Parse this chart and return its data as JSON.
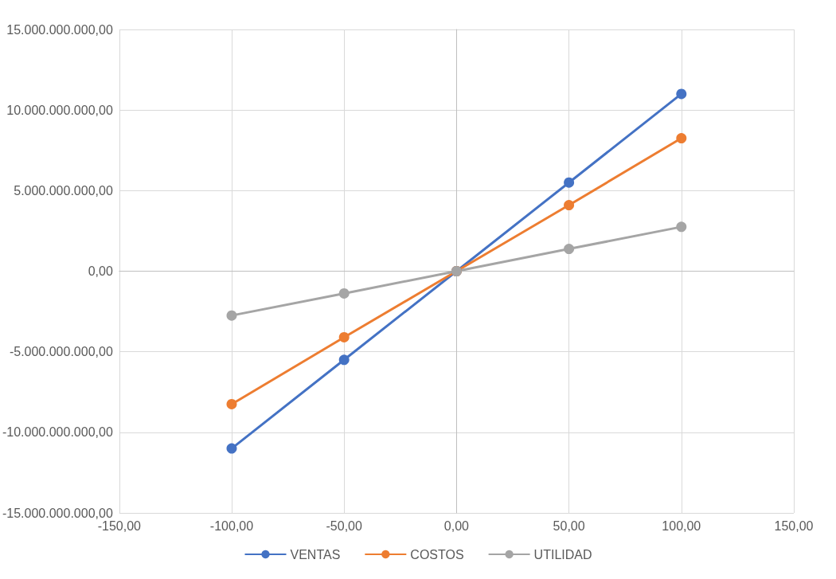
{
  "chart_data": {
    "type": "line",
    "x": [
      -100,
      -50,
      0,
      50,
      100
    ],
    "series": [
      {
        "name": "VENTAS",
        "color": "#4472c4",
        "values": [
          -11000000000,
          -5500000000,
          0,
          5500000000,
          11000000000
        ]
      },
      {
        "name": "COSTOS",
        "color": "#ed7d31",
        "values": [
          -8250000000,
          -4100000000,
          0,
          4100000000,
          8250000000
        ]
      },
      {
        "name": "UTILIDAD",
        "color": "#a5a5a5",
        "values": [
          -2750000000,
          -1380000000,
          0,
          1380000000,
          2750000000
        ]
      }
    ],
    "xlim": [
      -150,
      150
    ],
    "xticks": [
      {
        "value": -150,
        "label": "-150,00"
      },
      {
        "value": -100,
        "label": "-100,00"
      },
      {
        "value": -50,
        "label": "-50,00"
      },
      {
        "value": 0,
        "label": "0,00"
      },
      {
        "value": 50,
        "label": "50,00"
      },
      {
        "value": 100,
        "label": "100,00"
      },
      {
        "value": 150,
        "label": "150,00"
      }
    ],
    "ylim": [
      -15000000000,
      15000000000
    ],
    "yticks": [
      {
        "value": -15000000000,
        "label": "-15.000.000.000,00"
      },
      {
        "value": -10000000000,
        "label": "-10.000.000.000,00"
      },
      {
        "value": -5000000000,
        "label": "-5.000.000.000,00"
      },
      {
        "value": 0,
        "label": "0,00"
      },
      {
        "value": 5000000000,
        "label": "5.000.000.000,00"
      },
      {
        "value": 10000000000,
        "label": "10.000.000.000,00"
      },
      {
        "value": 15000000000,
        "label": "15.000.000.000,00"
      }
    ],
    "grid": true,
    "legend": "bottom",
    "marker": "circle",
    "line_style": "solid"
  }
}
